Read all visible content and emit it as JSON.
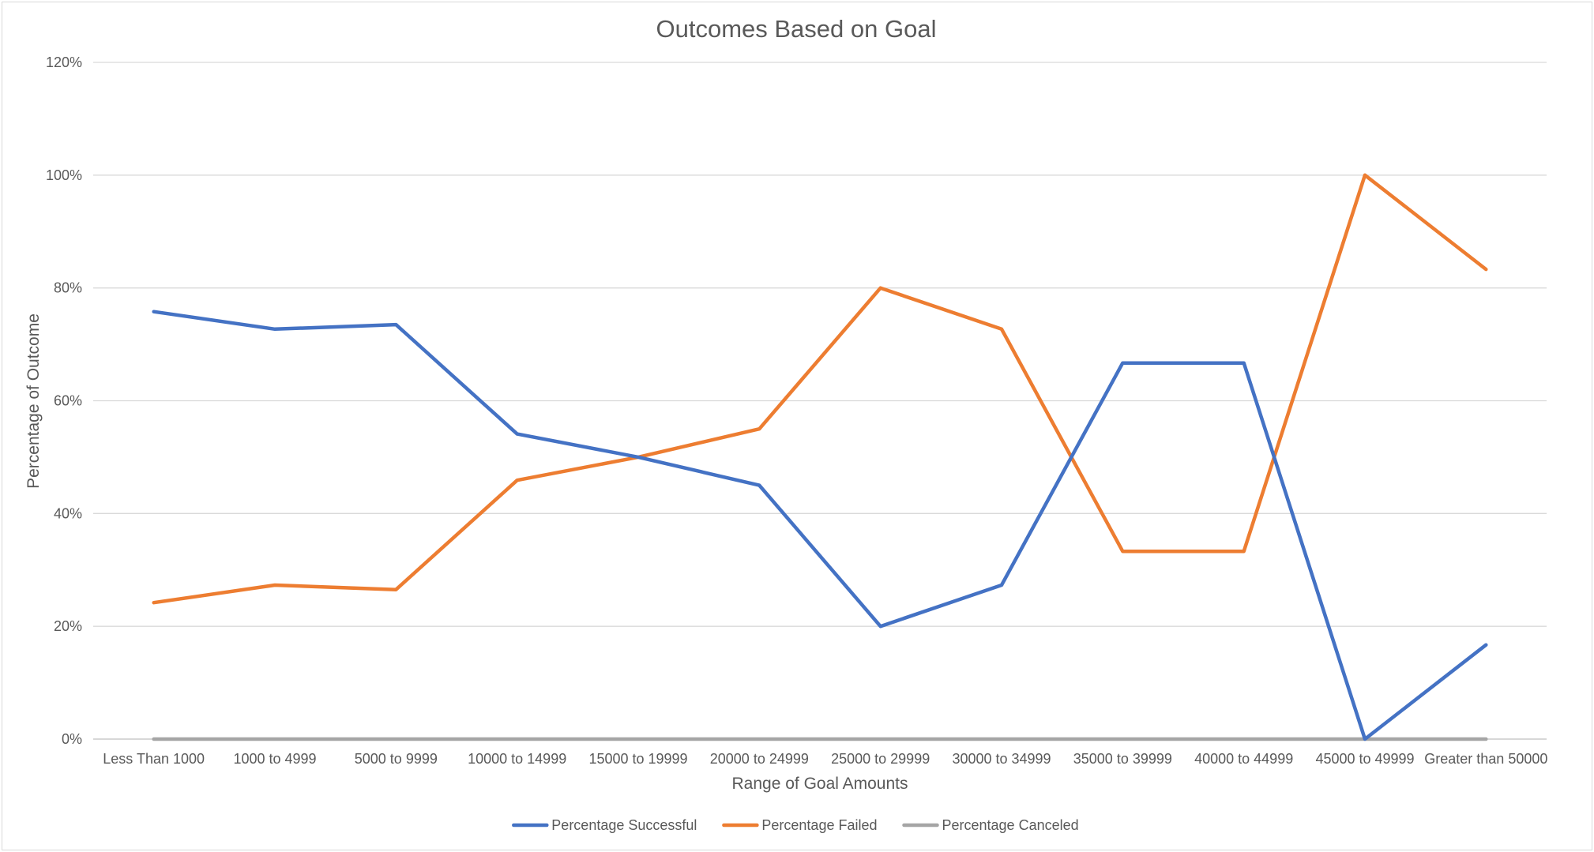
{
  "chart_data": {
    "type": "line",
    "title": "Outcomes Based on Goal",
    "xlabel": "Range of Goal Amounts",
    "ylabel": "Percentage of Outcome",
    "ylim": [
      0,
      120
    ],
    "y_ticks": [
      0,
      20,
      40,
      60,
      80,
      100,
      120
    ],
    "y_tick_suffix": "%",
    "grid": "horizontal",
    "legend_position": "bottom",
    "categories": [
      "Less Than 1000",
      "1000 to 4999",
      "5000 to 9999",
      "10000 to 14999",
      "15000 to 19999",
      "20000 to 24999",
      "25000 to 29999",
      "30000 to 34999",
      "35000 to 39999",
      "40000 to 44999",
      "45000 to 49999",
      "Greater than 50000"
    ],
    "series": [
      {
        "name": "Percentage Successful",
        "color": "#4472c4",
        "values": [
          75.8,
          72.7,
          73.5,
          54.1,
          50.0,
          45.0,
          20.0,
          27.3,
          66.7,
          66.7,
          0.0,
          16.7
        ]
      },
      {
        "name": "Percentage Failed",
        "color": "#ed7d31",
        "values": [
          24.2,
          27.3,
          26.5,
          45.9,
          50.0,
          55.0,
          80.0,
          72.7,
          33.3,
          33.3,
          100.0,
          83.3
        ]
      },
      {
        "name": "Percentage Canceled",
        "color": "#a5a5a5",
        "values": [
          0,
          0,
          0,
          0,
          0,
          0,
          0,
          0,
          0,
          0,
          0,
          0
        ]
      }
    ]
  }
}
